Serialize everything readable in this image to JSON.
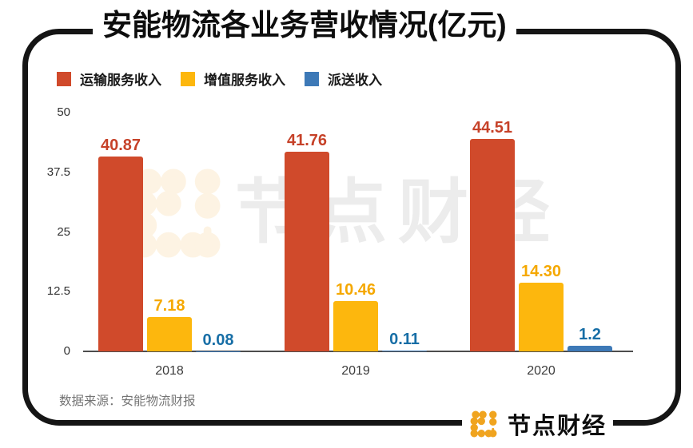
{
  "title": "安能物流各业务营收情况(亿元)",
  "source_note": "数据来源：安能物流财报",
  "watermark": {
    "text": "节点财经"
  },
  "logo": {
    "text": "节点财经",
    "icon": "dot-grid-node-logo",
    "icon_color": "#f0a41f"
  },
  "colors": {
    "transport_red": "#d04a2b",
    "value_added_yellow": "#fdb70d",
    "delivery_blue": "#3d79b7",
    "frame_black": "#151515",
    "axis_gray": "#4d4d4d"
  },
  "chart_data": {
    "type": "bar",
    "title": "安能物流各业务营收情况(亿元)",
    "xlabel": "",
    "ylabel": "",
    "categories": [
      "2018",
      "2019",
      "2020"
    ],
    "series": [
      {
        "name": "运输服务收入",
        "color": "#d04a2b",
        "label_color": "#c64128",
        "values": [
          40.87,
          41.76,
          44.51
        ],
        "labels": [
          "40.87",
          "41.76",
          "44.51"
        ]
      },
      {
        "name": "增值服务收入",
        "color": "#fdb70d",
        "label_color": "#f5a800",
        "values": [
          7.18,
          10.46,
          14.3
        ],
        "labels": [
          "7.18",
          "10.46",
          "14.30"
        ]
      },
      {
        "name": "派送收入",
        "color": "#3d79b7",
        "label_color": "#176ea6",
        "values": [
          0.08,
          0.11,
          1.2
        ],
        "labels": [
          "0.08",
          "0.11",
          "1.2"
        ]
      }
    ],
    "ylim": [
      0,
      50
    ],
    "y_ticks": [
      50,
      37.5,
      25,
      12.5,
      0
    ],
    "y_tick_labels": [
      "50",
      "37.5",
      "25",
      "12.5",
      "0"
    ],
    "grid": false,
    "legend_position": "top-left"
  }
}
